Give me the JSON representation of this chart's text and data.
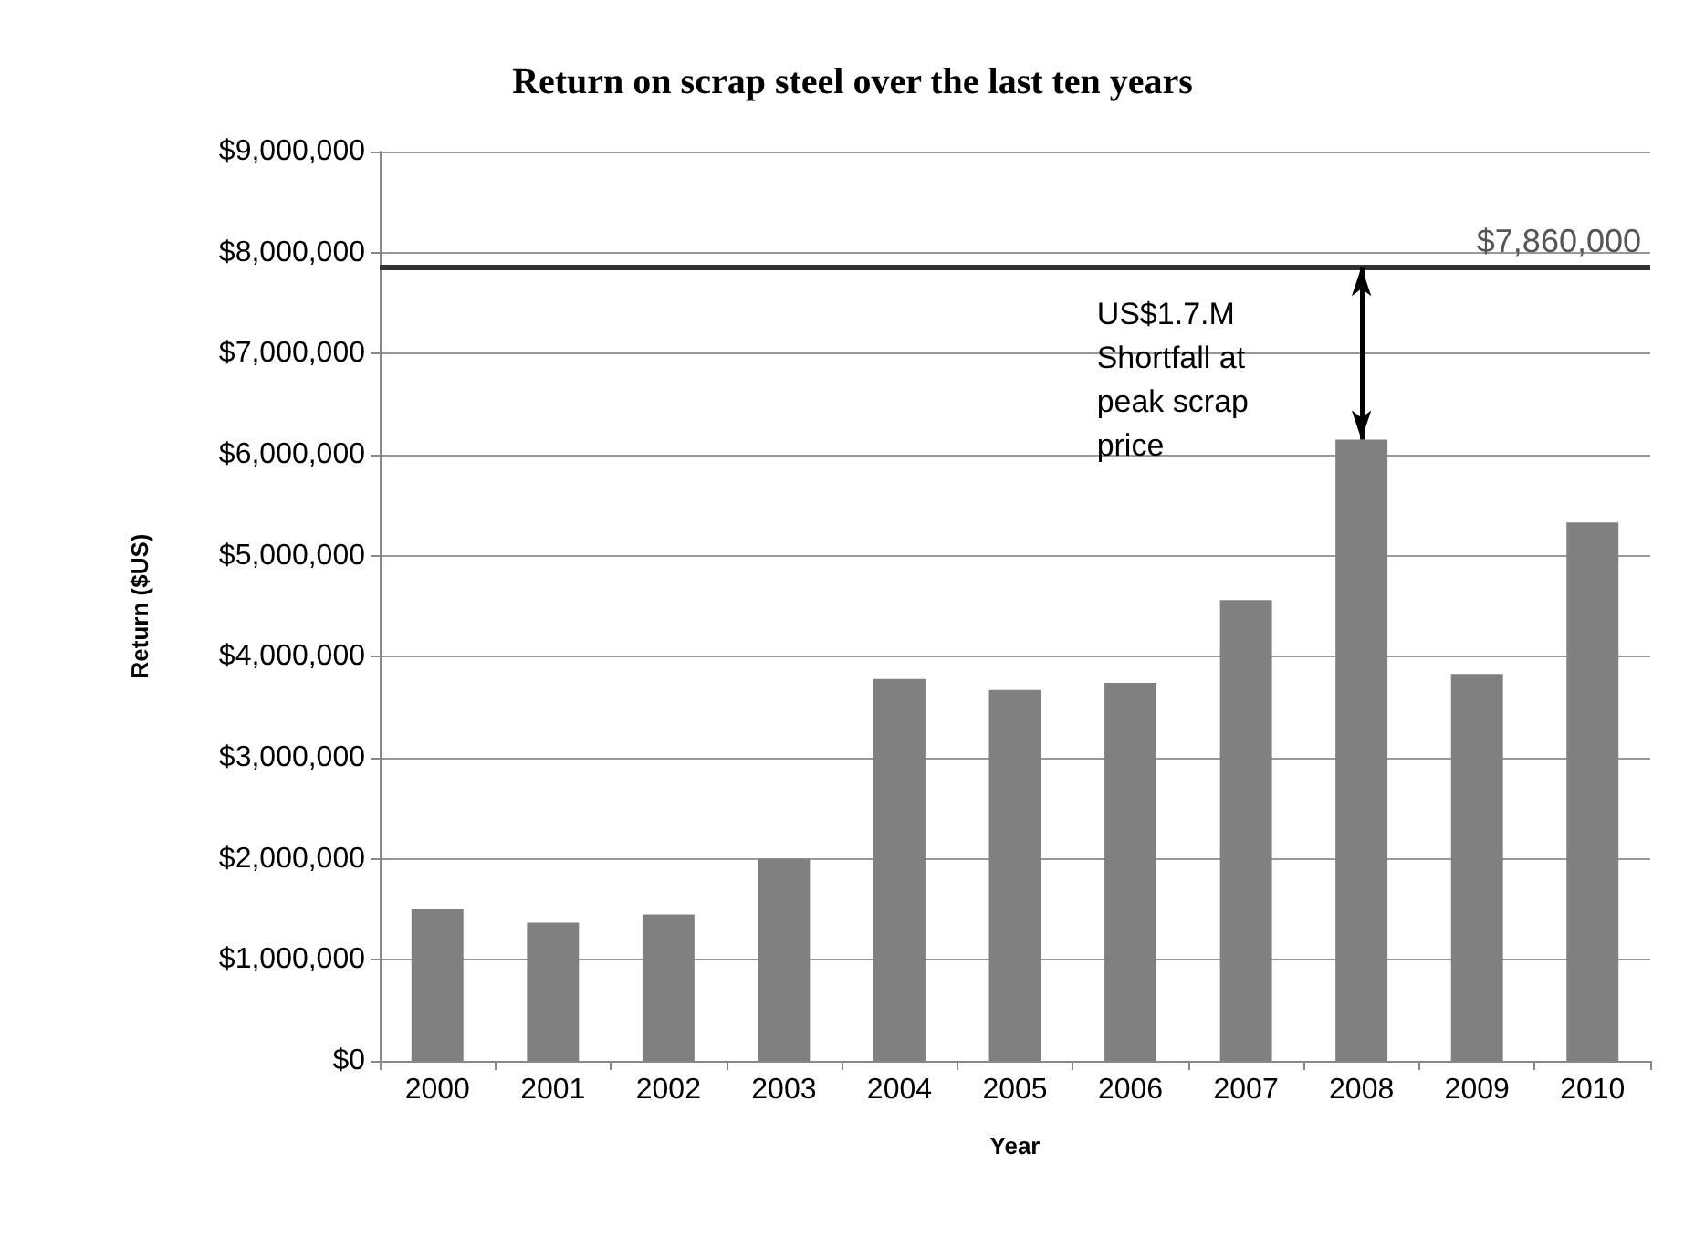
{
  "chart_data": {
    "type": "bar",
    "title": "Return on scrap steel over the last ten years",
    "xlabel": "Year",
    "ylabel": "Return ($US)",
    "categories": [
      "2000",
      "2001",
      "2002",
      "2003",
      "2004",
      "2005",
      "2006",
      "2007",
      "2008",
      "2009",
      "2010"
    ],
    "values": [
      1500000,
      1370000,
      1450000,
      2000000,
      3780000,
      3670000,
      3740000,
      4560000,
      6150000,
      3830000,
      5330000
    ],
    "color": "#808080",
    "ylim": [
      0,
      9000000
    ],
    "yticks": [
      {
        "value": 0,
        "label": "$0"
      },
      {
        "value": 1000000,
        "label": "$1,000,000"
      },
      {
        "value": 2000000,
        "label": "$2,000,000"
      },
      {
        "value": 3000000,
        "label": "$3,000,000"
      },
      {
        "value": 4000000,
        "label": "$4,000,000"
      },
      {
        "value": 5000000,
        "label": "$5,000,000"
      },
      {
        "value": 6000000,
        "label": "$6,000,000"
      },
      {
        "value": 7000000,
        "label": "$7,000,000"
      },
      {
        "value": 8000000,
        "label": "$8,000,000"
      },
      {
        "value": 9000000,
        "label": "$9,000,000"
      }
    ],
    "ref_lines": [
      {
        "axis": "y",
        "value": 7860000,
        "label": "$7,860,000",
        "color": "#333333"
      }
    ],
    "annotations": [
      "US$1.7.M\nShortfall at\npeak scrap\nprice"
    ],
    "grid": "y"
  }
}
